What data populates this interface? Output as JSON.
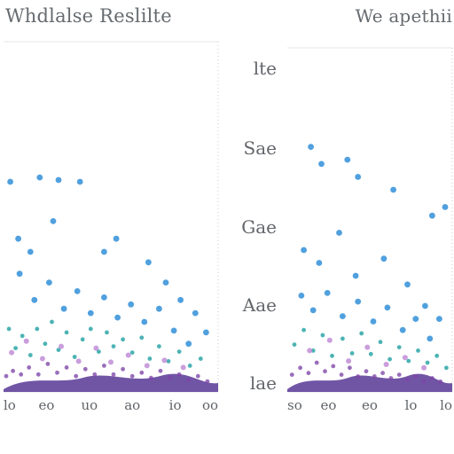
{
  "header": {
    "left_title": "Whdlalse Reslilte",
    "right_title": "We apethii"
  },
  "middle_axis": {
    "labels": [
      "lte",
      "Sae",
      "Gae",
      "Aae",
      "lae"
    ]
  },
  "chart_data": [
    {
      "type": "scatter",
      "title": "Whdlalse Reslilte",
      "xlabel": "",
      "ylabel": "",
      "xlim": [
        0,
        8
      ],
      "ylim": [
        0,
        4
      ],
      "x_ticks": [
        "lo",
        "eo",
        "uo",
        "ao",
        "io",
        "oo"
      ],
      "grid": false,
      "legend": "none",
      "colors": {
        "blue": "#2f8ed8",
        "teal": "#2aa5a6",
        "purple": "#7e45a8",
        "pink": "#c08bd5",
        "base": "#5d3d98"
      },
      "series": [
        {
          "color": "#2f8ed8",
          "points": [
            {
              "x": 0.25,
              "y": 2.4
            },
            {
              "x": 1.35,
              "y": 2.45
            },
            {
              "x": 2.05,
              "y": 2.42
            },
            {
              "x": 2.85,
              "y": 2.4
            },
            {
              "x": 0.55,
              "y": 1.75
            },
            {
              "x": 1.0,
              "y": 1.6
            },
            {
              "x": 1.85,
              "y": 1.95
            },
            {
              "x": 3.75,
              "y": 1.6
            },
            {
              "x": 4.2,
              "y": 1.75
            },
            {
              "x": 5.4,
              "y": 1.48
            },
            {
              "x": 6.05,
              "y": 1.25
            },
            {
              "x": 6.6,
              "y": 1.05
            },
            {
              "x": 7.15,
              "y": 0.9
            },
            {
              "x": 7.55,
              "y": 0.68
            },
            {
              "x": 0.6,
              "y": 1.35
            },
            {
              "x": 1.15,
              "y": 1.05
            },
            {
              "x": 1.7,
              "y": 1.25
            },
            {
              "x": 2.25,
              "y": 0.95
            },
            {
              "x": 2.75,
              "y": 1.15
            },
            {
              "x": 3.25,
              "y": 0.9
            },
            {
              "x": 3.75,
              "y": 1.08
            },
            {
              "x": 4.25,
              "y": 0.85
            },
            {
              "x": 4.75,
              "y": 1.0
            },
            {
              "x": 5.25,
              "y": 0.8
            },
            {
              "x": 5.8,
              "y": 0.95
            },
            {
              "x": 6.35,
              "y": 0.7
            },
            {
              "x": 6.9,
              "y": 0.55
            }
          ]
        },
        {
          "color": "#2aa5a6",
          "points": [
            {
              "x": 0.2,
              "y": 0.72
            },
            {
              "x": 0.45,
              "y": 0.5
            },
            {
              "x": 0.7,
              "y": 0.64
            },
            {
              "x": 1.0,
              "y": 0.42
            },
            {
              "x": 1.25,
              "y": 0.72
            },
            {
              "x": 1.55,
              "y": 0.55
            },
            {
              "x": 1.8,
              "y": 0.8
            },
            {
              "x": 2.05,
              "y": 0.48
            },
            {
              "x": 2.35,
              "y": 0.68
            },
            {
              "x": 2.65,
              "y": 0.4
            },
            {
              "x": 2.95,
              "y": 0.6
            },
            {
              "x": 3.25,
              "y": 0.72
            },
            {
              "x": 3.55,
              "y": 0.46
            },
            {
              "x": 3.85,
              "y": 0.68
            },
            {
              "x": 4.1,
              "y": 0.52
            },
            {
              "x": 4.45,
              "y": 0.6
            },
            {
              "x": 4.8,
              "y": 0.45
            },
            {
              "x": 5.15,
              "y": 0.62
            },
            {
              "x": 5.45,
              "y": 0.38
            },
            {
              "x": 5.8,
              "y": 0.52
            },
            {
              "x": 6.15,
              "y": 0.35
            },
            {
              "x": 6.55,
              "y": 0.46
            },
            {
              "x": 6.95,
              "y": 0.3
            },
            {
              "x": 7.35,
              "y": 0.38
            }
          ]
        },
        {
          "color": "#7e45a8",
          "points": [
            {
              "x": 0.1,
              "y": 0.18
            },
            {
              "x": 0.35,
              "y": 0.24
            },
            {
              "x": 0.65,
              "y": 0.2
            },
            {
              "x": 0.95,
              "y": 0.28
            },
            {
              "x": 1.3,
              "y": 0.2
            },
            {
              "x": 1.65,
              "y": 0.32
            },
            {
              "x": 2.0,
              "y": 0.22
            },
            {
              "x": 2.35,
              "y": 0.28
            },
            {
              "x": 2.7,
              "y": 0.18
            },
            {
              "x": 3.05,
              "y": 0.26
            },
            {
              "x": 3.4,
              "y": 0.2
            },
            {
              "x": 3.75,
              "y": 0.3
            },
            {
              "x": 4.1,
              "y": 0.2
            },
            {
              "x": 4.45,
              "y": 0.26
            },
            {
              "x": 4.8,
              "y": 0.18
            },
            {
              "x": 5.15,
              "y": 0.22
            },
            {
              "x": 5.5,
              "y": 0.16
            },
            {
              "x": 5.85,
              "y": 0.24
            },
            {
              "x": 6.2,
              "y": 0.16
            },
            {
              "x": 6.55,
              "y": 0.2
            },
            {
              "x": 6.9,
              "y": 0.14
            },
            {
              "x": 7.25,
              "y": 0.18
            },
            {
              "x": 7.6,
              "y": 0.12
            }
          ]
        },
        {
          "color": "#c08bd5",
          "points": [
            {
              "x": 0.3,
              "y": 0.45
            },
            {
              "x": 0.85,
              "y": 0.58
            },
            {
              "x": 1.45,
              "y": 0.38
            },
            {
              "x": 2.15,
              "y": 0.52
            },
            {
              "x": 2.8,
              "y": 0.35
            },
            {
              "x": 3.45,
              "y": 0.5
            },
            {
              "x": 4.0,
              "y": 0.34
            },
            {
              "x": 4.65,
              "y": 0.42
            },
            {
              "x": 5.35,
              "y": 0.3
            },
            {
              "x": 6.0,
              "y": 0.36
            },
            {
              "x": 6.7,
              "y": 0.28
            }
          ]
        }
      ]
    },
    {
      "type": "scatter",
      "title": "We apethii",
      "xlabel": "",
      "ylabel": "",
      "xlim": [
        0,
        7
      ],
      "ylim": [
        0,
        4
      ],
      "x_ticks": [
        "so",
        "eo",
        "eo",
        "lo",
        "lo"
      ],
      "grid": false,
      "legend": "none",
      "colors": {
        "blue": "#2f8ed8",
        "teal": "#2aa5a6",
        "purple": "#7e45a8",
        "pink": "#c08bd5",
        "base": "#5d3d98"
      },
      "series": [
        {
          "color": "#2f8ed8",
          "points": [
            {
              "x": 1.0,
              "y": 2.85
            },
            {
              "x": 1.45,
              "y": 2.65
            },
            {
              "x": 2.55,
              "y": 2.7
            },
            {
              "x": 3.0,
              "y": 2.5
            },
            {
              "x": 4.5,
              "y": 2.35
            },
            {
              "x": 6.15,
              "y": 2.05
            },
            {
              "x": 6.7,
              "y": 2.15
            },
            {
              "x": 0.7,
              "y": 1.65
            },
            {
              "x": 1.35,
              "y": 1.5
            },
            {
              "x": 2.2,
              "y": 1.85
            },
            {
              "x": 2.9,
              "y": 1.35
            },
            {
              "x": 4.1,
              "y": 1.55
            },
            {
              "x": 5.1,
              "y": 1.25
            },
            {
              "x": 5.85,
              "y": 1.0
            },
            {
              "x": 6.45,
              "y": 0.85
            },
            {
              "x": 0.6,
              "y": 1.12
            },
            {
              "x": 1.1,
              "y": 0.95
            },
            {
              "x": 1.7,
              "y": 1.15
            },
            {
              "x": 2.35,
              "y": 0.88
            },
            {
              "x": 3.0,
              "y": 1.05
            },
            {
              "x": 3.65,
              "y": 0.82
            },
            {
              "x": 4.25,
              "y": 0.98
            },
            {
              "x": 4.9,
              "y": 0.72
            },
            {
              "x": 5.45,
              "y": 0.85
            },
            {
              "x": 6.05,
              "y": 0.62
            }
          ]
        },
        {
          "color": "#2aa5a6",
          "points": [
            {
              "x": 0.3,
              "y": 0.55
            },
            {
              "x": 0.7,
              "y": 0.72
            },
            {
              "x": 1.1,
              "y": 0.48
            },
            {
              "x": 1.5,
              "y": 0.66
            },
            {
              "x": 1.9,
              "y": 0.42
            },
            {
              "x": 2.35,
              "y": 0.62
            },
            {
              "x": 2.75,
              "y": 0.45
            },
            {
              "x": 3.15,
              "y": 0.68
            },
            {
              "x": 3.55,
              "y": 0.44
            },
            {
              "x": 3.95,
              "y": 0.58
            },
            {
              "x": 4.35,
              "y": 0.38
            },
            {
              "x": 4.75,
              "y": 0.52
            },
            {
              "x": 5.15,
              "y": 0.36
            },
            {
              "x": 5.55,
              "y": 0.48
            },
            {
              "x": 5.95,
              "y": 0.34
            },
            {
              "x": 6.35,
              "y": 0.42
            },
            {
              "x": 6.75,
              "y": 0.28
            }
          ]
        },
        {
          "color": "#7e45a8",
          "points": [
            {
              "x": 0.2,
              "y": 0.2
            },
            {
              "x": 0.55,
              "y": 0.28
            },
            {
              "x": 0.9,
              "y": 0.22
            },
            {
              "x": 1.25,
              "y": 0.34
            },
            {
              "x": 1.6,
              "y": 0.24
            },
            {
              "x": 1.95,
              "y": 0.3
            },
            {
              "x": 2.3,
              "y": 0.2
            },
            {
              "x": 2.65,
              "y": 0.28
            },
            {
              "x": 3.0,
              "y": 0.18
            },
            {
              "x": 3.35,
              "y": 0.24
            },
            {
              "x": 3.7,
              "y": 0.18
            },
            {
              "x": 4.05,
              "y": 0.22
            },
            {
              "x": 4.4,
              "y": 0.16
            },
            {
              "x": 4.75,
              "y": 0.2
            },
            {
              "x": 5.1,
              "y": 0.14
            },
            {
              "x": 5.45,
              "y": 0.18
            },
            {
              "x": 5.8,
              "y": 0.12
            },
            {
              "x": 6.15,
              "y": 0.16
            },
            {
              "x": 6.5,
              "y": 0.12
            }
          ]
        },
        {
          "color": "#c08bd5",
          "points": [
            {
              "x": 0.95,
              "y": 0.48
            },
            {
              "x": 1.8,
              "y": 0.6
            },
            {
              "x": 2.6,
              "y": 0.36
            },
            {
              "x": 3.4,
              "y": 0.52
            },
            {
              "x": 4.2,
              "y": 0.32
            },
            {
              "x": 5.0,
              "y": 0.4
            },
            {
              "x": 5.8,
              "y": 0.28
            }
          ]
        }
      ]
    }
  ]
}
